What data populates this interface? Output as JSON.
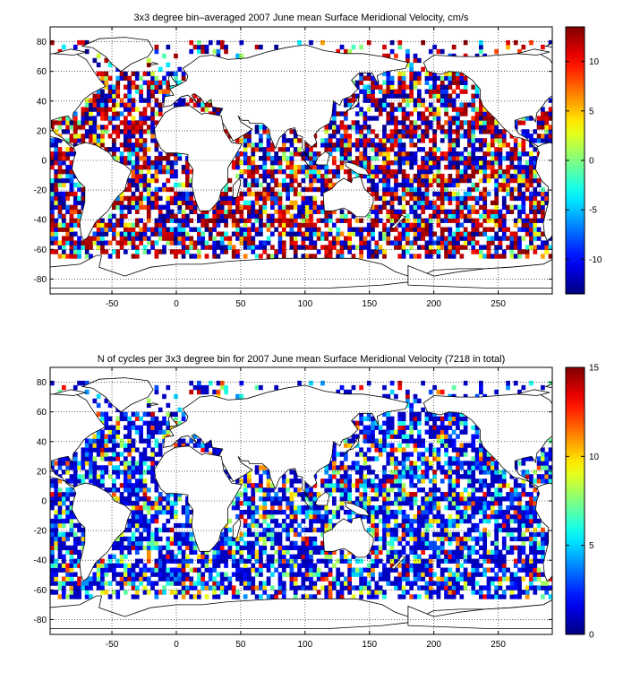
{
  "chart_data": [
    {
      "type": "heatmap",
      "title": "3x3 degree bin–averaged 2007 June mean Surface Meridional Velocity, cm/s",
      "xlabel": "",
      "ylabel": "",
      "xlim": [
        -98,
        292
      ],
      "ylim": [
        -90,
        90
      ],
      "xticks": [
        "-50",
        "0",
        "50",
        "100",
        "150",
        "200",
        "250"
      ],
      "xtick_values": [
        -50,
        0,
        50,
        100,
        150,
        200,
        250
      ],
      "yticks": [
        "80",
        "60",
        "40",
        "20",
        "0",
        "-20",
        "-40",
        "-60",
        "-80"
      ],
      "ytick_values": [
        80,
        60,
        40,
        20,
        0,
        -20,
        -40,
        -60,
        -80
      ],
      "colorbar": {
        "min": -13.5,
        "max": 13.5,
        "ticks": [
          "10",
          "5",
          "0",
          "-5",
          "-10"
        ],
        "tick_values": [
          10,
          5,
          0,
          -5,
          -10
        ],
        "colormap": "jet"
      },
      "bin_size_deg": 3,
      "grid": true,
      "basemap": "world coastlines",
      "value_kind": "velocity"
    },
    {
      "type": "heatmap",
      "title": "N of cycles per 3x3 degree bin for 2007 June mean Surface Meridional Velocity (7218 in total)",
      "xlabel": "",
      "ylabel": "",
      "xlim": [
        -98,
        292
      ],
      "ylim": [
        -90,
        90
      ],
      "xticks": [
        "-50",
        "0",
        "50",
        "100",
        "150",
        "200",
        "250"
      ],
      "xtick_values": [
        -50,
        0,
        50,
        100,
        150,
        200,
        250
      ],
      "yticks": [
        "80",
        "60",
        "40",
        "20",
        "0",
        "-20",
        "-40",
        "-60",
        "-80"
      ],
      "ytick_values": [
        80,
        60,
        40,
        20,
        0,
        -20,
        -40,
        -60,
        -80
      ],
      "colorbar": {
        "min": 0,
        "max": 15,
        "ticks": [
          "15",
          "10",
          "5",
          "0"
        ],
        "tick_values": [
          15,
          10,
          5,
          0
        ],
        "colormap": "jet"
      },
      "bin_size_deg": 3,
      "grid": true,
      "basemap": "world coastlines",
      "value_kind": "count"
    }
  ]
}
